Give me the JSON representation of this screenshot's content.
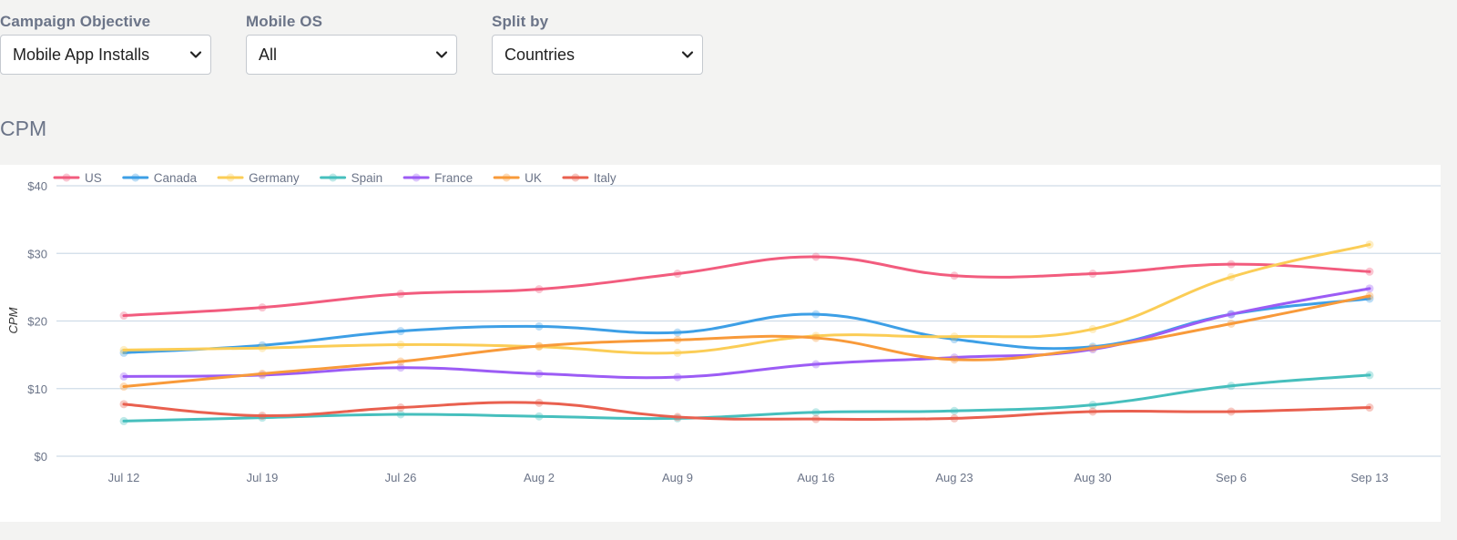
{
  "filters": [
    {
      "label": "Campaign Objective",
      "value": "Mobile App Installs"
    },
    {
      "label": "Mobile OS",
      "value": "All"
    },
    {
      "label": "Split by",
      "value": "Countries"
    }
  ],
  "section_title": "CPM",
  "chart_data": {
    "type": "line",
    "title": "",
    "xlabel": "",
    "ylabel": "CPM",
    "ylim": [
      0,
      40
    ],
    "y_ticks": [
      0,
      10,
      20,
      30,
      40
    ],
    "y_tick_labels": [
      "$0",
      "$10",
      "$20",
      "$30",
      "$40"
    ],
    "grid": true,
    "legend_position": "top-left",
    "x": [
      "Jul 12",
      "Jul 19",
      "Jul 26",
      "Aug 2",
      "Aug 9",
      "Aug 16",
      "Aug 23",
      "Aug 30",
      "Sep 6",
      "Sep 13"
    ],
    "series": [
      {
        "name": "US",
        "color": "#f25c7e",
        "values": [
          20.8,
          22.0,
          24.0,
          24.7,
          27.0,
          29.5,
          26.7,
          27.0,
          28.4,
          27.3
        ]
      },
      {
        "name": "Canada",
        "color": "#3d9fe6",
        "values": [
          15.3,
          16.4,
          18.5,
          19.2,
          18.3,
          21.0,
          17.3,
          16.2,
          21.0,
          23.3
        ]
      },
      {
        "name": "Germany",
        "color": "#fbcd56",
        "values": [
          15.7,
          16.0,
          16.5,
          16.2,
          15.3,
          17.8,
          17.7,
          18.8,
          26.5,
          31.3
        ]
      },
      {
        "name": "Spain",
        "color": "#46bfbd",
        "values": [
          5.2,
          5.7,
          6.2,
          5.9,
          5.6,
          6.5,
          6.7,
          7.6,
          10.4,
          12.0
        ]
      },
      {
        "name": "France",
        "color": "#9c5cf5",
        "values": [
          11.8,
          12.0,
          13.1,
          12.2,
          11.7,
          13.6,
          14.6,
          15.8,
          21.0,
          24.8
        ]
      },
      {
        "name": "UK",
        "color": "#f89a3a",
        "values": [
          10.3,
          12.2,
          14.0,
          16.3,
          17.2,
          17.5,
          14.3,
          16.0,
          19.6,
          23.7
        ]
      },
      {
        "name": "Italy",
        "color": "#e9604f",
        "values": [
          7.7,
          6.0,
          7.2,
          7.9,
          5.8,
          5.5,
          5.6,
          6.6,
          6.6,
          7.2
        ]
      }
    ]
  }
}
